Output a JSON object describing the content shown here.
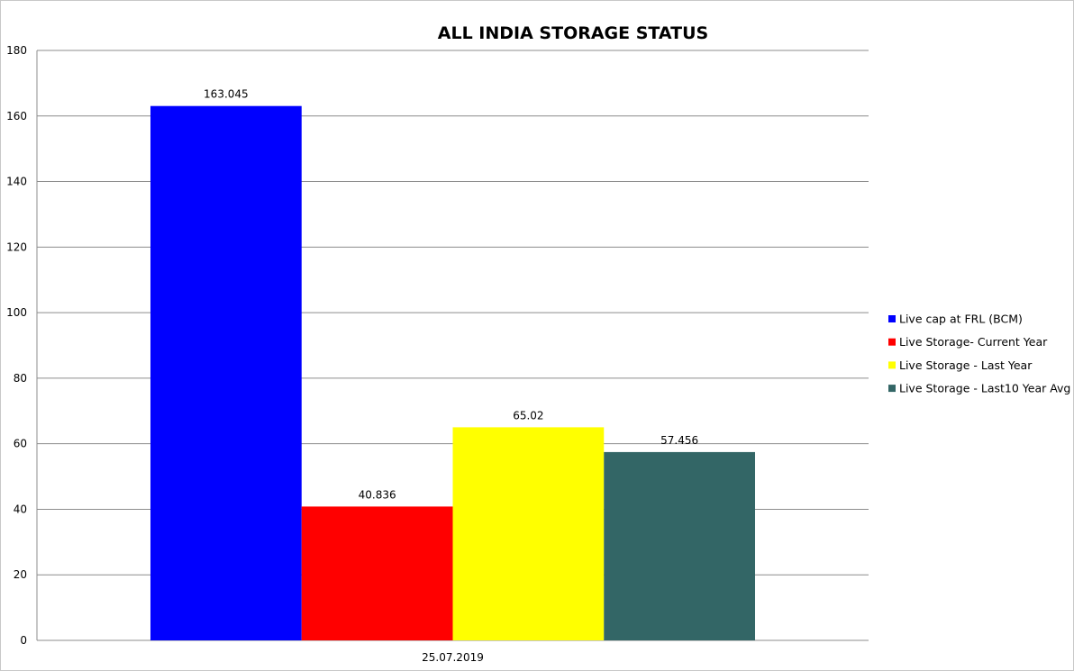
{
  "chart_data": {
    "type": "bar",
    "title": "ALL INDIA STORAGE STATUS",
    "xlabel": "",
    "ylabel": "",
    "categories": [
      "25.07.2019"
    ],
    "ylim": [
      0,
      180
    ],
    "yticks": [
      0,
      20,
      40,
      60,
      80,
      100,
      120,
      140,
      160,
      180
    ],
    "grid": true,
    "legend_position": "right",
    "series": [
      {
        "name": "Live cap at FRL (BCM)",
        "values": [
          163.045
        ],
        "value_labels": [
          "163.045"
        ],
        "color": "#0000ff"
      },
      {
        "name": "Live Storage- Current Year",
        "values": [
          40.836
        ],
        "value_labels": [
          "40.836"
        ],
        "color": "#ff0000"
      },
      {
        "name": "Live Storage - Last Year",
        "values": [
          65.02
        ],
        "value_labels": [
          "65.02"
        ],
        "color": "#ffff00"
      },
      {
        "name": "Live Storage - Last10  Year Avg",
        "values": [
          57.456
        ],
        "value_labels": [
          "57.456"
        ],
        "color": "#336666"
      }
    ]
  }
}
